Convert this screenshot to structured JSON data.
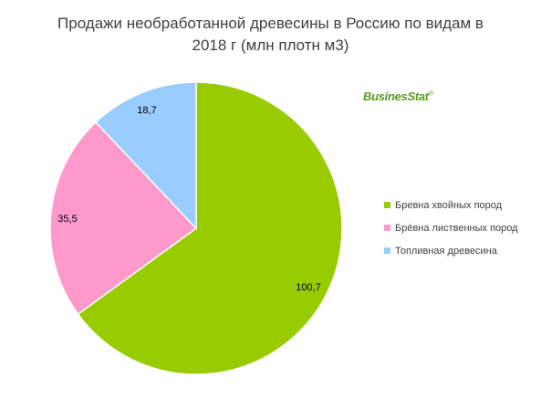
{
  "chart_data": {
    "type": "pie",
    "title_lines": [
      "Продажи необработанной древесины в Россию по видам в",
      "2018 г (млн плотн м3)"
    ],
    "slices": [
      {
        "name": "Бревна хвойных пород",
        "value": 100.7,
        "label": "100,7",
        "color": "#99cc00"
      },
      {
        "name": "Брёвна лиственных пород",
        "value": 35.5,
        "label": "35,5",
        "color": "#ff99cc"
      },
      {
        "name": "Топливная древесина",
        "value": 18.7,
        "label": "18,7",
        "color": "#99ccff"
      }
    ],
    "legend_placement": "right"
  },
  "branding": {
    "logo_text": "BusinesStat",
    "logo_mark": "®",
    "logo_color": "#5a9a1e"
  }
}
